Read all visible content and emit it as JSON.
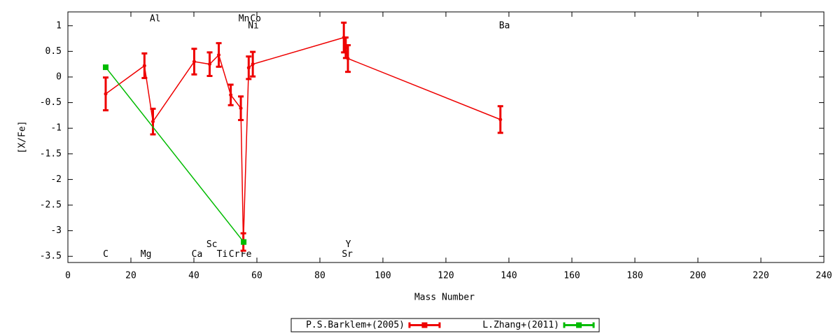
{
  "chart_data": {
    "type": "line",
    "xlabel": "Mass Number",
    "ylabel": "[X/Fe]",
    "xlim": [
      0,
      240
    ],
    "xticks": [
      0,
      20,
      40,
      60,
      80,
      100,
      120,
      140,
      160,
      180,
      200,
      220,
      240
    ],
    "ylim": [
      -3.62,
      1.27
    ],
    "yticks": [
      -3.5,
      -3,
      -2.5,
      -2,
      -1.5,
      -1,
      -0.5,
      0,
      0.5,
      1
    ],
    "grid": false,
    "legend": "bottom",
    "series": [
      {
        "name": "P.S.Barklem+(2005)",
        "color": "#ee0000",
        "x": [
          12,
          24.3,
          27,
          40.1,
          45,
          47.9,
          51.7,
          54.9,
          55.7,
          57.4,
          58.7,
          87.6,
          88.2,
          88.9,
          137.3
        ],
        "values": [
          -0.33,
          0.22,
          -0.87,
          0.3,
          0.25,
          0.43,
          -0.35,
          -0.61,
          -3.22,
          0.18,
          0.25,
          0.77,
          0.57,
          0.36,
          -0.83
        ],
        "errors": [
          0.32,
          0.24,
          0.25,
          0.25,
          0.23,
          0.23,
          0.2,
          0.23,
          0.17,
          0.22,
          0.24,
          0.29,
          0.2,
          0.26,
          0.26
        ]
      },
      {
        "name": "L.Zhang+(2011)",
        "color": "#00bb00",
        "x": [
          12,
          55.8
        ],
        "values": [
          0.19,
          -3.22
        ]
      }
    ],
    "annotations": [
      {
        "text": "C",
        "x": 12,
        "y": -3.46
      },
      {
        "text": "Mg",
        "x": 24.8,
        "y": -3.46
      },
      {
        "text": "Ca",
        "x": 41,
        "y": -3.46
      },
      {
        "text": "Ti",
        "x": 49,
        "y": -3.46
      },
      {
        "text": "Cr",
        "x": 52.8,
        "y": -3.46
      },
      {
        "text": "Fe",
        "x": 56.6,
        "y": -3.46
      },
      {
        "text": "Sr",
        "x": 88.7,
        "y": -3.46
      },
      {
        "text": "Sc",
        "x": 45.7,
        "y": -3.27
      },
      {
        "text": "Y",
        "x": 89,
        "y": -3.27
      },
      {
        "text": "Al",
        "x": 27.7,
        "y": 1.13
      },
      {
        "text": "Mn",
        "x": 55.9,
        "y": 1.13
      },
      {
        "text": "Co",
        "x": 59.6,
        "y": 1.13
      },
      {
        "text": "Ni",
        "x": 58.9,
        "y": 1.0
      },
      {
        "text": "Ba",
        "x": 138.6,
        "y": 1.0
      }
    ]
  }
}
